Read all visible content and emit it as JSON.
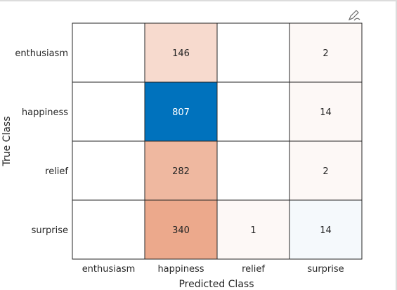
{
  "chart_data": {
    "type": "heatmap",
    "x_categories": [
      "enthusiasm",
      "happiness",
      "relief",
      "surprise"
    ],
    "y_categories": [
      "enthusiasm",
      "happiness",
      "relief",
      "surprise"
    ],
    "xlabel": "Predicted Class",
    "ylabel": "True Class",
    "matrix": [
      [
        null,
        146,
        null,
        2
      ],
      [
        null,
        807,
        null,
        14
      ],
      [
        null,
        282,
        null,
        2
      ],
      [
        null,
        340,
        1,
        14
      ]
    ],
    "colors": {
      "diagonal": "#0072bd",
      "off_diagonal": "#d95319",
      "grid_line": "#262626",
      "text_dark": "#262626",
      "text_light": "#ffffff"
    }
  },
  "toolbar": {
    "icon": "edit-plot-icon"
  }
}
